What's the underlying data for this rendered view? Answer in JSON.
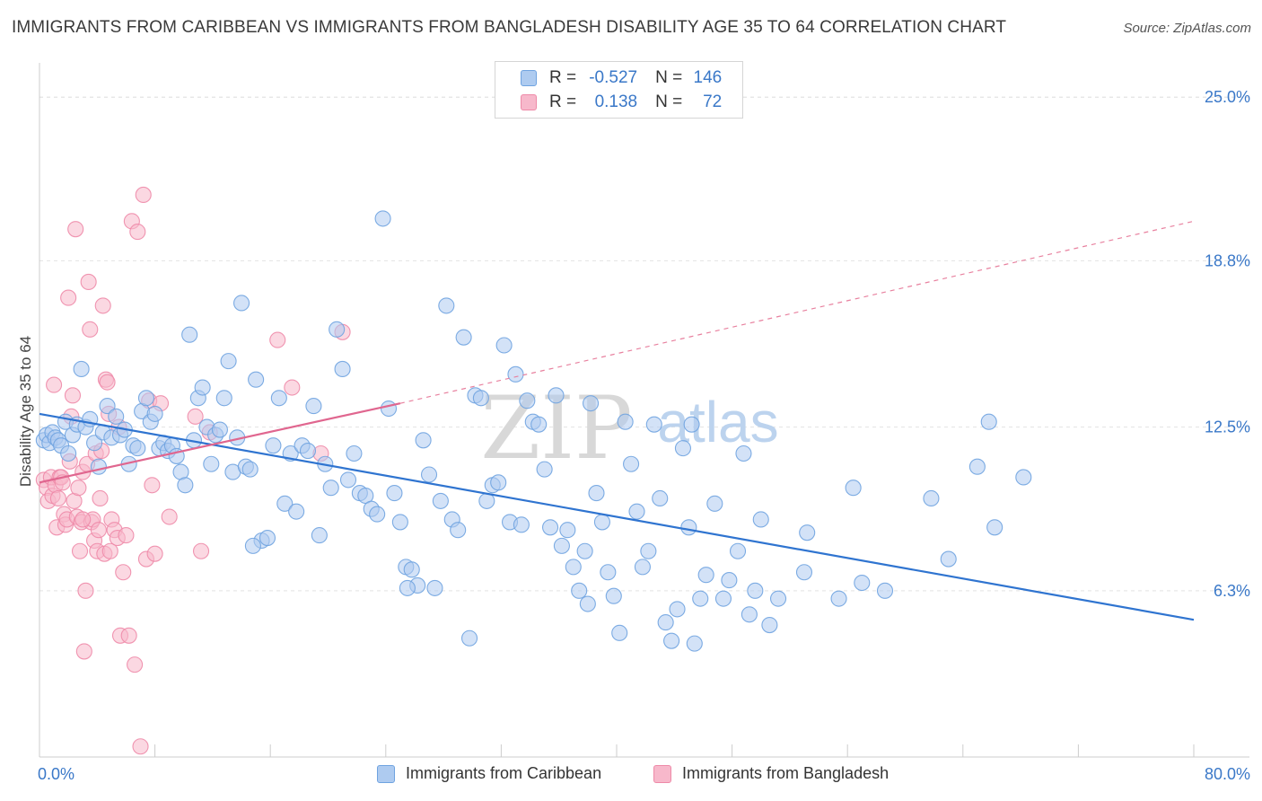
{
  "header": {
    "title": "IMMIGRANTS FROM CARIBBEAN VS IMMIGRANTS FROM BANGLADESH DISABILITY AGE 35 TO 64 CORRELATION CHART",
    "source": "Source: ZipAtlas.com"
  },
  "legend": {
    "r_label": "R =",
    "n_label": "N =",
    "series": [
      {
        "swatch_color": "#aecbf0",
        "r": "-0.527",
        "n": "146"
      },
      {
        "swatch_color": "#f7b8cb",
        "r": "0.138",
        "n": "72"
      }
    ]
  },
  "watermark": {
    "zip": "ZIP",
    "atlas": "atlas"
  },
  "chart_data": {
    "type": "scatter",
    "title": "IMMIGRANTS FROM CARIBBEAN VS IMMIGRANTS FROM BANGLADESH DISABILITY AGE 35 TO 64 CORRELATION CHART",
    "ylabel": "Disability Age 35 to 64",
    "xlim": [
      0,
      80
    ],
    "ylim": [
      0,
      26.3
    ],
    "x_tick_labels": [
      "0.0%",
      "80.0%"
    ],
    "y_ticks": [
      6.3,
      12.5,
      18.8,
      25.0
    ],
    "y_tick_labels": [
      "6.3%",
      "12.5%",
      "18.8%",
      "25.0%"
    ],
    "grid": true,
    "series": [
      {
        "name": "Immigrants from Caribbean",
        "color": "#6fa3e0",
        "fill": "#aecbf0",
        "trend": {
          "x": [
            0,
            80
          ],
          "y": [
            13.0,
            5.2
          ],
          "dashed_extension": false
        },
        "points": [
          [
            0.3,
            12.0
          ],
          [
            0.5,
            12.2
          ],
          [
            0.7,
            11.9
          ],
          [
            0.9,
            12.3
          ],
          [
            1.1,
            12.1
          ],
          [
            1.3,
            12.0
          ],
          [
            1.5,
            11.8
          ],
          [
            1.8,
            12.7
          ],
          [
            2.0,
            11.5
          ],
          [
            2.3,
            12.2
          ],
          [
            2.6,
            12.6
          ],
          [
            2.9,
            14.7
          ],
          [
            3.2,
            12.5
          ],
          [
            3.5,
            12.8
          ],
          [
            3.8,
            11.9
          ],
          [
            4.1,
            11.0
          ],
          [
            4.4,
            12.3
          ],
          [
            4.7,
            13.3
          ],
          [
            5.0,
            12.1
          ],
          [
            5.3,
            12.9
          ],
          [
            5.6,
            12.2
          ],
          [
            5.9,
            12.4
          ],
          [
            6.2,
            11.1
          ],
          [
            6.5,
            11.8
          ],
          [
            6.8,
            11.7
          ],
          [
            7.1,
            13.1
          ],
          [
            7.4,
            13.6
          ],
          [
            7.7,
            12.7
          ],
          [
            8.0,
            13.0
          ],
          [
            8.3,
            11.7
          ],
          [
            8.6,
            11.9
          ],
          [
            8.9,
            11.6
          ],
          [
            9.2,
            11.8
          ],
          [
            9.5,
            11.4
          ],
          [
            9.8,
            10.8
          ],
          [
            10.1,
            10.3
          ],
          [
            10.4,
            16.0
          ],
          [
            10.7,
            12.0
          ],
          [
            11.0,
            13.6
          ],
          [
            11.3,
            14.0
          ],
          [
            11.6,
            12.5
          ],
          [
            11.9,
            11.1
          ],
          [
            12.2,
            12.2
          ],
          [
            12.5,
            12.4
          ],
          [
            12.8,
            13.6
          ],
          [
            13.1,
            15.0
          ],
          [
            13.4,
            10.8
          ],
          [
            13.7,
            12.1
          ],
          [
            14.0,
            17.2
          ],
          [
            14.3,
            11.0
          ],
          [
            14.6,
            10.9
          ],
          [
            15.0,
            14.3
          ],
          [
            15.4,
            8.2
          ],
          [
            15.8,
            8.3
          ],
          [
            16.2,
            11.8
          ],
          [
            16.6,
            13.6
          ],
          [
            17.0,
            9.6
          ],
          [
            17.4,
            11.5
          ],
          [
            17.8,
            9.3
          ],
          [
            18.2,
            11.8
          ],
          [
            18.6,
            11.6
          ],
          [
            19.0,
            13.3
          ],
          [
            19.4,
            8.4
          ],
          [
            19.8,
            11.1
          ],
          [
            20.2,
            10.2
          ],
          [
            20.6,
            16.2
          ],
          [
            21.0,
            14.7
          ],
          [
            21.4,
            10.5
          ],
          [
            21.8,
            11.5
          ],
          [
            22.2,
            10.0
          ],
          [
            22.6,
            9.9
          ],
          [
            23.0,
            9.4
          ],
          [
            23.4,
            9.2
          ],
          [
            23.8,
            20.4
          ],
          [
            24.2,
            13.2
          ],
          [
            24.6,
            10.0
          ],
          [
            25.0,
            8.9
          ],
          [
            25.4,
            7.2
          ],
          [
            25.8,
            7.1
          ],
          [
            26.2,
            6.5
          ],
          [
            26.6,
            12.0
          ],
          [
            27.0,
            10.7
          ],
          [
            27.4,
            6.4
          ],
          [
            27.8,
            9.7
          ],
          [
            28.2,
            17.1
          ],
          [
            28.6,
            9.0
          ],
          [
            29.0,
            8.6
          ],
          [
            29.4,
            15.9
          ],
          [
            29.8,
            4.5
          ],
          [
            30.2,
            13.7
          ],
          [
            30.6,
            13.6
          ],
          [
            31.0,
            9.7
          ],
          [
            31.4,
            10.3
          ],
          [
            31.8,
            10.4
          ],
          [
            32.2,
            15.6
          ],
          [
            32.6,
            8.9
          ],
          [
            33.0,
            14.5
          ],
          [
            33.4,
            8.8
          ],
          [
            33.8,
            13.5
          ],
          [
            34.2,
            12.7
          ],
          [
            34.6,
            12.6
          ],
          [
            35.0,
            10.9
          ],
          [
            35.4,
            8.7
          ],
          [
            35.8,
            13.7
          ],
          [
            36.2,
            8.0
          ],
          [
            36.6,
            8.6
          ],
          [
            37.0,
            7.2
          ],
          [
            37.4,
            6.3
          ],
          [
            37.8,
            7.8
          ],
          [
            38.2,
            13.4
          ],
          [
            38.6,
            10.0
          ],
          [
            39.0,
            8.9
          ],
          [
            39.4,
            7.0
          ],
          [
            39.8,
            6.1
          ],
          [
            40.2,
            4.7
          ],
          [
            40.6,
            12.7
          ],
          [
            41.0,
            11.1
          ],
          [
            41.4,
            9.3
          ],
          [
            41.8,
            7.2
          ],
          [
            42.2,
            7.8
          ],
          [
            42.6,
            12.6
          ],
          [
            43.0,
            9.8
          ],
          [
            43.4,
            5.1
          ],
          [
            43.8,
            4.4
          ],
          [
            44.2,
            5.6
          ],
          [
            44.6,
            11.7
          ],
          [
            45.0,
            8.7
          ],
          [
            45.4,
            4.3
          ],
          [
            45.8,
            6.0
          ],
          [
            46.2,
            6.9
          ],
          [
            46.8,
            9.6
          ],
          [
            47.4,
            6.0
          ],
          [
            47.8,
            6.7
          ],
          [
            48.4,
            7.8
          ],
          [
            48.8,
            11.5
          ],
          [
            49.2,
            5.4
          ],
          [
            49.6,
            6.3
          ],
          [
            50.6,
            5.0
          ],
          [
            51.2,
            6.0
          ],
          [
            53.2,
            8.5
          ],
          [
            55.4,
            6.0
          ],
          [
            56.4,
            10.2
          ],
          [
            57.0,
            6.6
          ],
          [
            58.6,
            6.3
          ],
          [
            61.8,
            9.8
          ],
          [
            65.8,
            12.7
          ],
          [
            66.2,
            8.7
          ],
          [
            68.2,
            10.6
          ],
          [
            65.0,
            11.0
          ],
          [
            63.0,
            7.5
          ],
          [
            50.0,
            9.0
          ],
          [
            53.0,
            7.0
          ],
          [
            45.2,
            12.6
          ],
          [
            38.0,
            5.8
          ],
          [
            25.5,
            6.4
          ],
          [
            14.8,
            8.0
          ]
        ]
      },
      {
        "name": "Immigrants from Bangladesh",
        "color": "#ee8aa8",
        "fill": "#f7b8cb",
        "trend": {
          "x": [
            0,
            25
          ],
          "y": [
            10.4,
            13.4
          ],
          "dashed_extension": true,
          "extension_to": [
            80,
            20.3
          ]
        },
        "points": [
          [
            0.3,
            10.5
          ],
          [
            0.5,
            10.2
          ],
          [
            0.6,
            9.7
          ],
          [
            0.8,
            10.6
          ],
          [
            0.9,
            9.9
          ],
          [
            1.0,
            14.1
          ],
          [
            1.1,
            10.3
          ],
          [
            1.2,
            8.7
          ],
          [
            1.3,
            9.8
          ],
          [
            1.4,
            10.6
          ],
          [
            1.5,
            10.6
          ],
          [
            1.6,
            10.4
          ],
          [
            1.7,
            9.2
          ],
          [
            1.8,
            8.8
          ],
          [
            1.9,
            9.0
          ],
          [
            2.0,
            17.4
          ],
          [
            2.1,
            11.2
          ],
          [
            2.2,
            12.9
          ],
          [
            2.3,
            13.7
          ],
          [
            2.4,
            9.7
          ],
          [
            2.5,
            20.0
          ],
          [
            2.6,
            9.1
          ],
          [
            2.7,
            10.2
          ],
          [
            2.8,
            7.8
          ],
          [
            2.9,
            8.9
          ],
          [
            3.0,
            10.8
          ],
          [
            3.1,
            4.0
          ],
          [
            3.2,
            6.3
          ],
          [
            3.3,
            11.1
          ],
          [
            3.4,
            18.0
          ],
          [
            3.5,
            16.2
          ],
          [
            3.6,
            8.9
          ],
          [
            3.7,
            9.0
          ],
          [
            3.8,
            8.2
          ],
          [
            3.9,
            11.5
          ],
          [
            4.0,
            7.8
          ],
          [
            4.2,
            9.8
          ],
          [
            4.3,
            11.6
          ],
          [
            4.4,
            17.1
          ],
          [
            4.5,
            7.7
          ],
          [
            4.6,
            14.3
          ],
          [
            4.7,
            14.2
          ],
          [
            4.8,
            13.0
          ],
          [
            4.9,
            7.8
          ],
          [
            5.0,
            9.0
          ],
          [
            5.2,
            8.6
          ],
          [
            5.4,
            8.3
          ],
          [
            5.6,
            4.6
          ],
          [
            5.8,
            7.0
          ],
          [
            6.0,
            8.4
          ],
          [
            6.2,
            4.6
          ],
          [
            6.4,
            20.3
          ],
          [
            6.6,
            3.5
          ],
          [
            6.8,
            19.9
          ],
          [
            7.0,
            0.4
          ],
          [
            7.2,
            21.3
          ],
          [
            7.4,
            7.5
          ],
          [
            7.6,
            13.5
          ],
          [
            7.8,
            10.3
          ],
          [
            8.0,
            7.7
          ],
          [
            8.4,
            13.4
          ],
          [
            9.0,
            9.1
          ],
          [
            10.8,
            12.9
          ],
          [
            11.2,
            7.8
          ],
          [
            11.8,
            12.3
          ],
          [
            16.5,
            15.8
          ],
          [
            17.5,
            14.0
          ],
          [
            19.5,
            11.5
          ],
          [
            21.0,
            16.1
          ],
          [
            3.0,
            9.0
          ],
          [
            5.5,
            12.5
          ],
          [
            4.1,
            8.6
          ]
        ]
      }
    ]
  },
  "bottom_legend": {
    "items": [
      {
        "label": "Immigrants from Caribbean",
        "color": "#aecbf0"
      },
      {
        "label": "Immigrants from Bangladesh",
        "color": "#f7b8cb"
      }
    ]
  },
  "axis": {
    "x_min_label": "0.0%",
    "x_max_label": "80.0%",
    "y_label": "Disability Age 35 to 64"
  }
}
